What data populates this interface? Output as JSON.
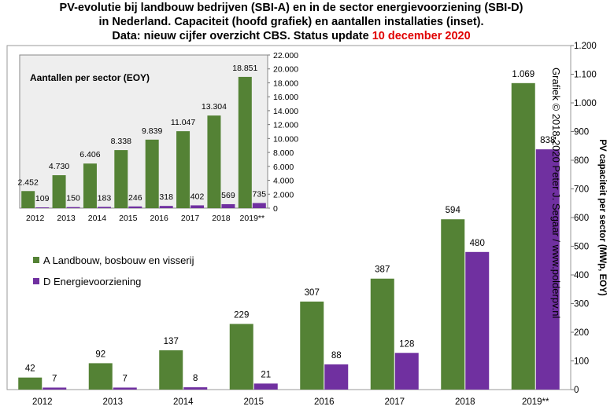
{
  "title": {
    "line1": "PV-evolutie bij landbouw bedrijven (SBI-A) en in de sector energievoorziening (SBI-D)",
    "line2": "in Nederland. Capaciteit (hoofd grafiek) en aantallen installaties (inset).",
    "line3_prefix": "Data: nieuw cijfer overzicht CBS. Status update ",
    "line3_date": "10 december 2020"
  },
  "watermark": "Grafiek © 2018-2020  Peter J. Segaar / www.polderpv.nl",
  "colors": {
    "green": "#548235",
    "purple": "#7030a0",
    "date_red": "#e00000"
  },
  "chart_data": [
    {
      "type": "bar",
      "categories": [
        "2012",
        "2013",
        "2014",
        "2015",
        "2016",
        "2017",
        "2018",
        "2019**"
      ],
      "series": [
        {
          "name": "A Landbouw, bosbouw en visserij",
          "values": [
            42,
            92,
            137,
            229,
            307,
            387,
            594,
            1069
          ],
          "labels": [
            "42",
            "92",
            "137",
            "229",
            "307",
            "387",
            "594",
            "1.069"
          ]
        },
        {
          "name": "D Energievoorziening",
          "values": [
            7,
            7,
            8,
            21,
            88,
            128,
            480,
            838
          ],
          "labels": [
            "7",
            "7",
            "8",
            "21",
            "88",
            "128",
            "480",
            "838"
          ]
        }
      ],
      "ylabel": "PV capaciteit per sector (MWp, EOY)",
      "ylim": [
        0,
        1200
      ],
      "yticks": [
        0,
        100,
        200,
        300,
        400,
        500,
        600,
        700,
        800,
        900,
        1000,
        1100,
        1200
      ],
      "ytick_labels": [
        "0",
        "100",
        "200",
        "300",
        "400",
        "500",
        "600",
        "700",
        "800",
        "900",
        "1.000",
        "1.100",
        "1.200"
      ],
      "y_axis_side": "right",
      "legend_position": "middle-left",
      "grid": false
    },
    {
      "type": "bar",
      "title": "Aantallen per sector (EOY)",
      "categories": [
        "2012",
        "2013",
        "2014",
        "2015",
        "2016",
        "2017",
        "2018",
        "2019**"
      ],
      "series": [
        {
          "name": "A Landbouw, bosbouw en visserij",
          "values": [
            2452,
            4730,
            6406,
            8338,
            9839,
            11047,
            13304,
            18851
          ],
          "labels": [
            "2.452",
            "4.730",
            "6.406",
            "8.338",
            "9.839",
            "11.047",
            "13.304",
            "18.851"
          ]
        },
        {
          "name": "D Energievoorziening",
          "values": [
            109,
            150,
            183,
            246,
            318,
            402,
            569,
            735
          ],
          "labels": [
            "109",
            "150",
            "183",
            "246",
            "318",
            "402",
            "569",
            "735"
          ]
        }
      ],
      "ylim": [
        0,
        22000
      ],
      "yticks": [
        0,
        2000,
        4000,
        6000,
        8000,
        10000,
        12000,
        14000,
        16000,
        18000,
        20000,
        22000
      ],
      "ytick_labels": [
        "0",
        "2.000",
        "4.000",
        "6.000",
        "8.000",
        "10.000",
        "12.000",
        "14.000",
        "16.000",
        "18.000",
        "20.000",
        "22.000"
      ],
      "y_axis_side": "right",
      "grid": false
    }
  ]
}
